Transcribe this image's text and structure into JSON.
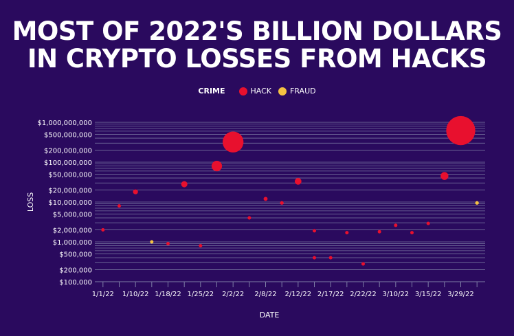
{
  "title_line1": "MOST OF 2022'S BILLION DOLLARS",
  "title_line2": "IN CRYPTO LOSSES FROM HACKS",
  "legend": {
    "title": "CRIME",
    "items": [
      {
        "label": "HACK",
        "color": "#e8102e"
      },
      {
        "label": "FRAUD",
        "color": "#f5c242"
      }
    ]
  },
  "colors": {
    "background": "#2a0a5e",
    "grid": "#7e7fa6",
    "hack": "#e8102e",
    "fraud": "#f5c242"
  },
  "chart_data": {
    "type": "scatter",
    "xlabel": "DATE",
    "ylabel": "LOSS",
    "y_scale": "log",
    "ylim": [
      100000,
      1000000000
    ],
    "grid": true,
    "legend_position": "top-center",
    "x_tick_labels": [
      "1/1/22",
      "1/10/22",
      "1/18/22",
      "1/25/22",
      "2/2/22",
      "2/8/22",
      "2/12/22",
      "2/17/22",
      "2/22/22",
      "3/10/22",
      "3/15/22",
      "3/29/22"
    ],
    "y_tick_labels": [
      "$1,000,000,000",
      "$500,000,000",
      "$200,000,000",
      "$100,000,000",
      "$50,000,000",
      "$20,000,000",
      "$10,000,000",
      "$5,000,000",
      "$2,000,000",
      "$1,000,000",
      "$500,000",
      "$200,000",
      "$100,000"
    ],
    "y_ticks": [
      1000000000,
      500000000,
      200000000,
      100000000,
      50000000,
      20000000,
      10000000,
      5000000,
      2000000,
      1000000,
      500000,
      200000,
      100000
    ],
    "x_slots": 24,
    "series": [
      {
        "name": "HACK",
        "color": "#e8102e",
        "points": [
          {
            "x": 0,
            "y": 2000000
          },
          {
            "x": 1,
            "y": 8000000
          },
          {
            "x": 2,
            "y": 18000000
          },
          {
            "x": 4,
            "y": 900000
          },
          {
            "x": 5,
            "y": 28000000
          },
          {
            "x": 6,
            "y": 800000
          },
          {
            "x": 7,
            "y": 80000000
          },
          {
            "x": 8,
            "y": 320000000
          },
          {
            "x": 9,
            "y": 4000000
          },
          {
            "x": 10,
            "y": 12000000
          },
          {
            "x": 11,
            "y": 9500000
          },
          {
            "x": 12,
            "y": 33000000
          },
          {
            "x": 13,
            "y": 1900000
          },
          {
            "x": 13,
            "y": 400000
          },
          {
            "x": 14,
            "y": 400000
          },
          {
            "x": 15,
            "y": 1700000
          },
          {
            "x": 16,
            "y": 280000
          },
          {
            "x": 17,
            "y": 1800000
          },
          {
            "x": 18,
            "y": 2600000
          },
          {
            "x": 19,
            "y": 1700000
          },
          {
            "x": 20,
            "y": 2900000
          },
          {
            "x": 21,
            "y": 45000000
          },
          {
            "x": 22,
            "y": 620000000
          }
        ]
      },
      {
        "name": "FRAUD",
        "color": "#f5c242",
        "points": [
          {
            "x": 3,
            "y": 1000000
          },
          {
            "x": 23,
            "y": 9500000
          }
        ]
      }
    ]
  }
}
